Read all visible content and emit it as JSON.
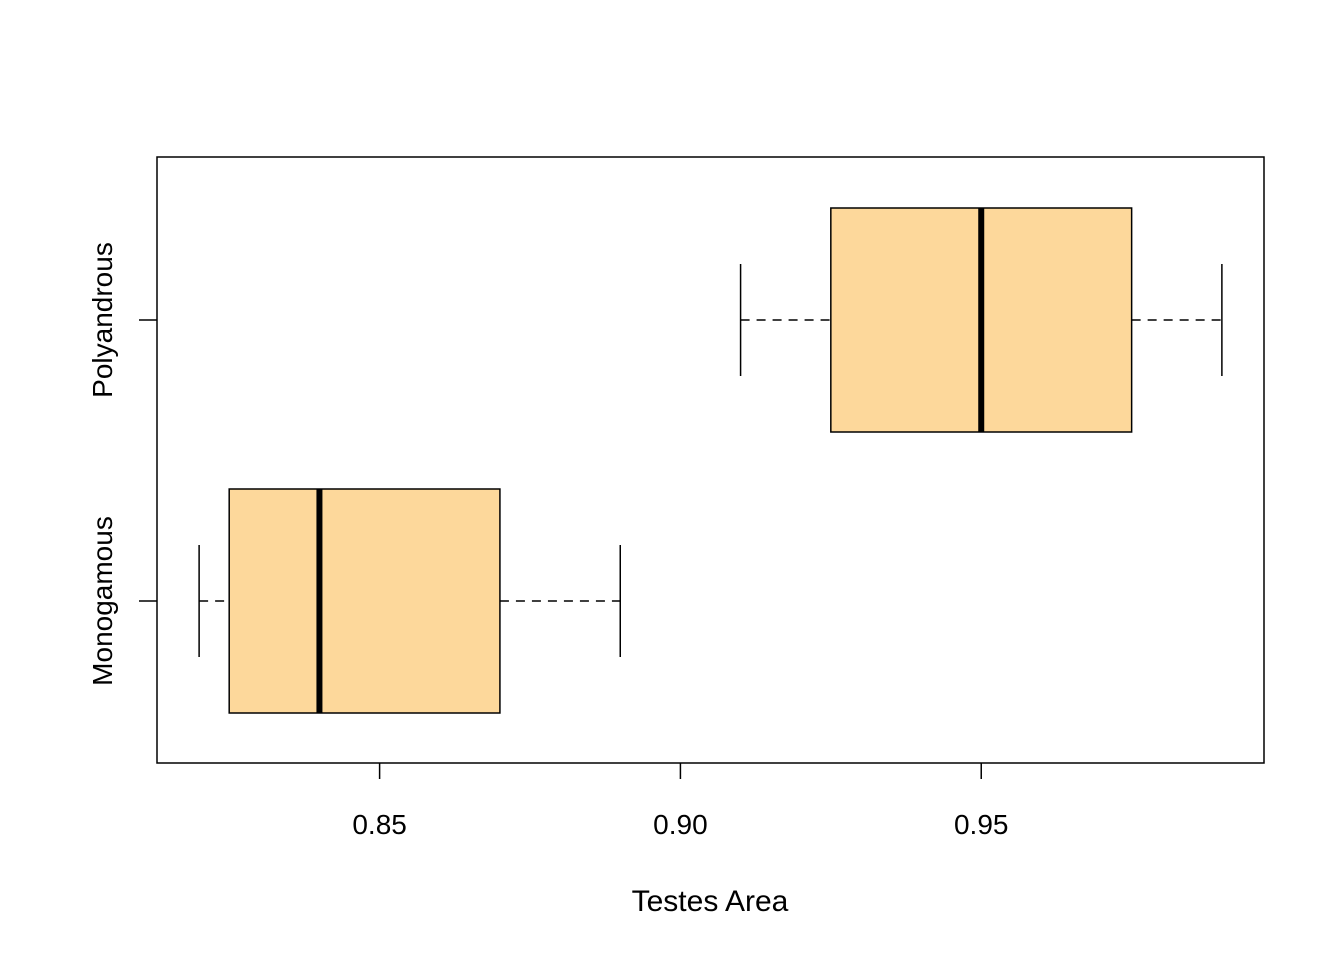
{
  "chart_data": {
    "type": "boxplot",
    "orientation": "horizontal",
    "title": "",
    "xlabel": "Testes Area",
    "ylabel": "",
    "xlim": [
      0.813,
      0.997
    ],
    "x_ticks": [
      0.85,
      0.9,
      0.95
    ],
    "x_tick_labels": [
      "0.85",
      "0.90",
      "0.95"
    ],
    "box_color": "#FDD89B",
    "groups": [
      {
        "label": "Monogamous",
        "whisker_low": 0.82,
        "q1": 0.825,
        "median": 0.84,
        "q3": 0.87,
        "whisker_high": 0.89
      },
      {
        "label": "Polyandrous",
        "whisker_low": 0.91,
        "q1": 0.925,
        "median": 0.95,
        "q3": 0.975,
        "whisker_high": 0.99
      }
    ]
  }
}
